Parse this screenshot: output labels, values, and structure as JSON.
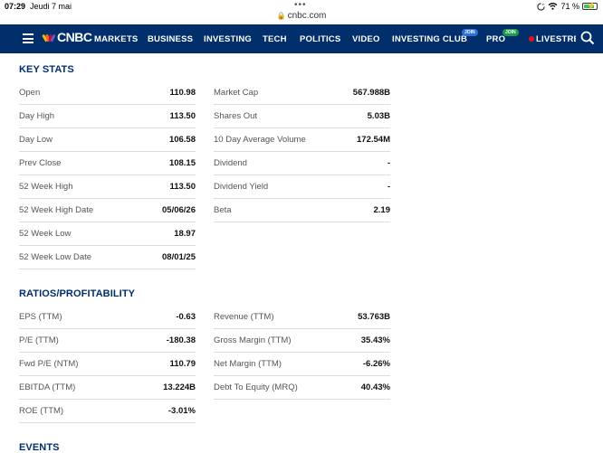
{
  "status_bar": {
    "time": "07:29",
    "date": "Jeudi 7 mai",
    "battery_text": "71 %"
  },
  "browser": {
    "url": "cnbc.com"
  },
  "nav": {
    "logo": "CNBC",
    "items": [
      {
        "label": "MARKETS"
      },
      {
        "label": "BUSINESS"
      },
      {
        "label": "INVESTING"
      },
      {
        "label": "TECH"
      },
      {
        "label": "POLITICS"
      },
      {
        "label": "VIDEO"
      },
      {
        "label": "INVESTING CLUB",
        "badge": "JOIN"
      },
      {
        "label": "PRO",
        "badge": "JOIN"
      },
      {
        "label": "LIVESTREA"
      }
    ],
    "colors": {
      "background": "#002f6c",
      "club_badge": "#2f6fd6",
      "pro_badge": "#1f9a4a",
      "live_dot": "#ee1111"
    }
  },
  "key_stats": {
    "title": "KEY STATS",
    "left": [
      {
        "label": "Open",
        "value": "110.98"
      },
      {
        "label": "Day High",
        "value": "113.50"
      },
      {
        "label": "Day Low",
        "value": "106.58"
      },
      {
        "label": "Prev Close",
        "value": "108.15"
      },
      {
        "label": "52 Week High",
        "value": "113.50"
      },
      {
        "label": "52 Week High Date",
        "value": "05/06/26"
      },
      {
        "label": "52 Week Low",
        "value": "18.97"
      },
      {
        "label": "52 Week Low Date",
        "value": "08/01/25"
      }
    ],
    "right": [
      {
        "label": "Market Cap",
        "value": "567.988B"
      },
      {
        "label": "Shares Out",
        "value": "5.03B"
      },
      {
        "label": "10 Day Average Volume",
        "value": "172.54M"
      },
      {
        "label": "Dividend",
        "value": "-"
      },
      {
        "label": "Dividend Yield",
        "value": "-"
      },
      {
        "label": "Beta",
        "value": "2.19"
      }
    ]
  },
  "ratios": {
    "title": "RATIOS/PROFITABILITY",
    "left": [
      {
        "label": "EPS (TTM)",
        "value": "-0.63"
      },
      {
        "label": "P/E (TTM)",
        "value": "-180.38"
      },
      {
        "label": "Fwd P/E (NTM)",
        "value": "110.79"
      },
      {
        "label": "EBITDA (TTM)",
        "value": "13.224B"
      },
      {
        "label": "ROE (TTM)",
        "value": "-3.01%"
      }
    ],
    "right": [
      {
        "label": "Revenue (TTM)",
        "value": "53.763B"
      },
      {
        "label": "Gross Margin (TTM)",
        "value": "35.43%"
      },
      {
        "label": "Net Margin (TTM)",
        "value": "-6.26%"
      },
      {
        "label": "Debt To Equity (MRQ)",
        "value": "40.43%"
      }
    ]
  },
  "events": {
    "title": "EVENTS"
  }
}
